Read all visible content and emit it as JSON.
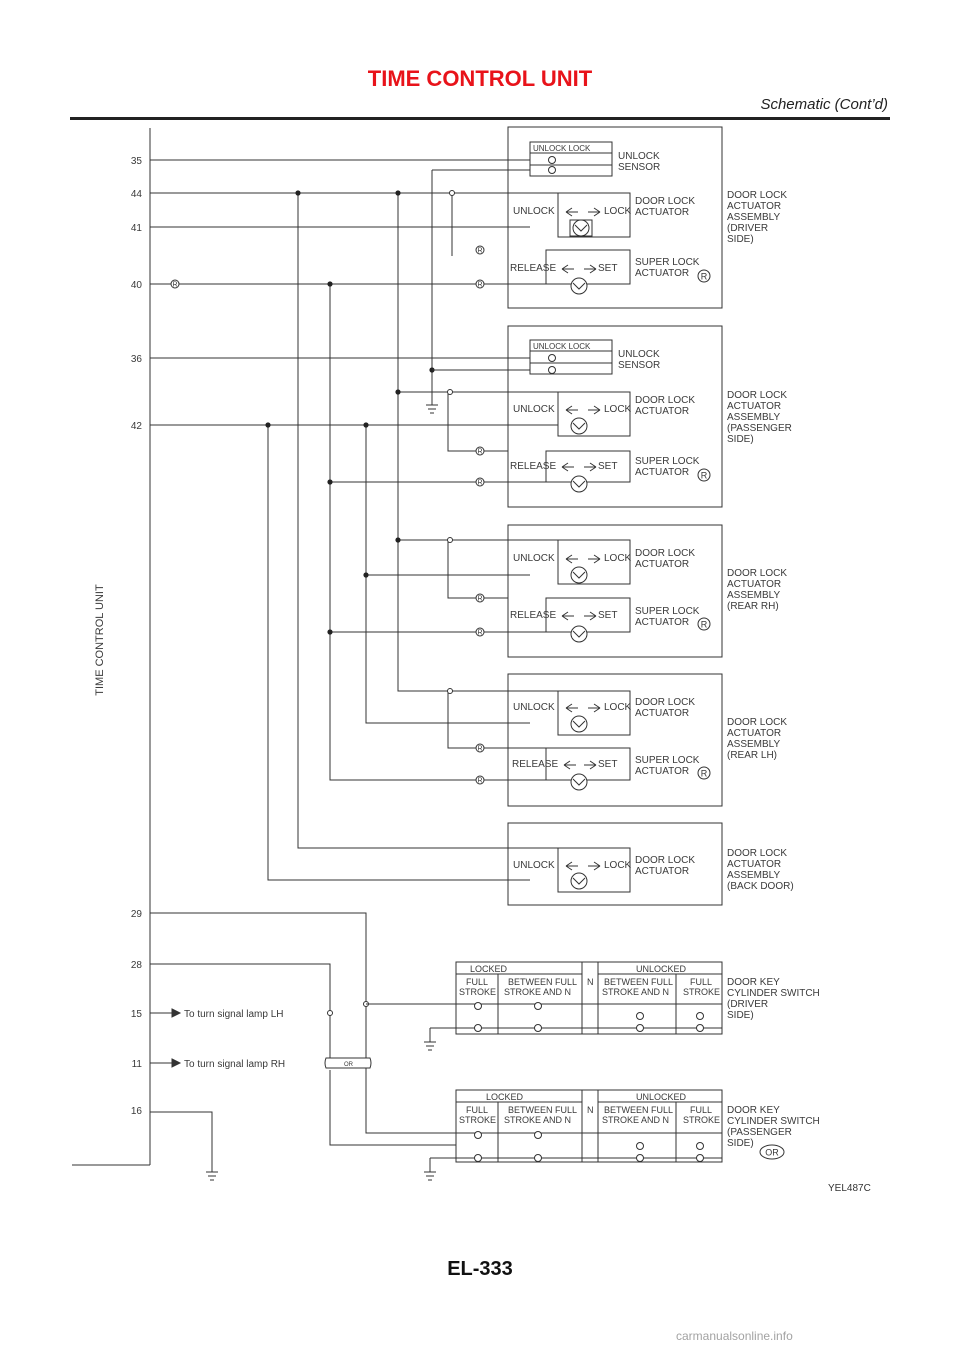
{
  "header": {
    "title": "TIME CONTROL UNIT",
    "subtitle": "Schematic (Cont’d)"
  },
  "unit_label": "TIME CONTROL UNIT",
  "terminals": [
    "35",
    "44",
    "41",
    "40",
    "36",
    "42",
    "29",
    "28",
    "15",
    "11",
    "16"
  ],
  "labels": {
    "unlock_lock_head": "UNLOCK    LOCK",
    "unlock_sensor_1": "UNLOCK",
    "unlock_sensor_2": "SENSOR",
    "unlock": "UNLOCK",
    "lock": "LOCK",
    "release": "RELEASE",
    "set": "SET",
    "door_lock_actuator_1": "DOOR LOCK",
    "door_lock_actuator_2": "ACTUATOR",
    "super_lock_1": "SUPER LOCK",
    "super_lock_2": "ACTUATOR",
    "r_mark": "R",
    "or_mark": "OR",
    "turn_lh": "To turn signal lamp LH",
    "turn_rh": "To turn signal lamp RH"
  },
  "assemblies": [
    {
      "lines": [
        "DOOR LOCK",
        "ACTUATOR",
        "ASSEMBLY",
        "(DRIVER",
        "SIDE)"
      ]
    },
    {
      "lines": [
        "DOOR LOCK",
        "ACTUATOR",
        "ASSEMBLY",
        "(PASSENGER",
        "SIDE)"
      ]
    },
    {
      "lines": [
        "DOOR LOCK",
        "ACTUATOR",
        "ASSEMBLY",
        "(REAR RH)"
      ]
    },
    {
      "lines": [
        "DOOR LOCK",
        "ACTUATOR",
        "ASSEMBLY",
        "(REAR LH)"
      ]
    },
    {
      "lines": [
        "DOOR LOCK",
        "ACTUATOR",
        "ASSEMBLY",
        "(BACK DOOR)"
      ]
    }
  ],
  "key_switch": {
    "locked": "LOCKED",
    "unlocked": "UNLOCKED",
    "n": "N",
    "full_1": "FULL",
    "full_2": "STROKE",
    "between_1": "BETWEEN FULL",
    "between_2": "STROKE AND N",
    "driver_lines": [
      "DOOR KEY",
      "CYLINDER SWITCH",
      "(DRIVER",
      "SIDE)"
    ],
    "passenger_lines": [
      "DOOR KEY",
      "CYLINDER SWITCH",
      "(PASSENGER",
      "SIDE)"
    ]
  },
  "figure_code": "YEL487C",
  "page_code": "EL-333",
  "watermark": "carmanualsonline.info"
}
